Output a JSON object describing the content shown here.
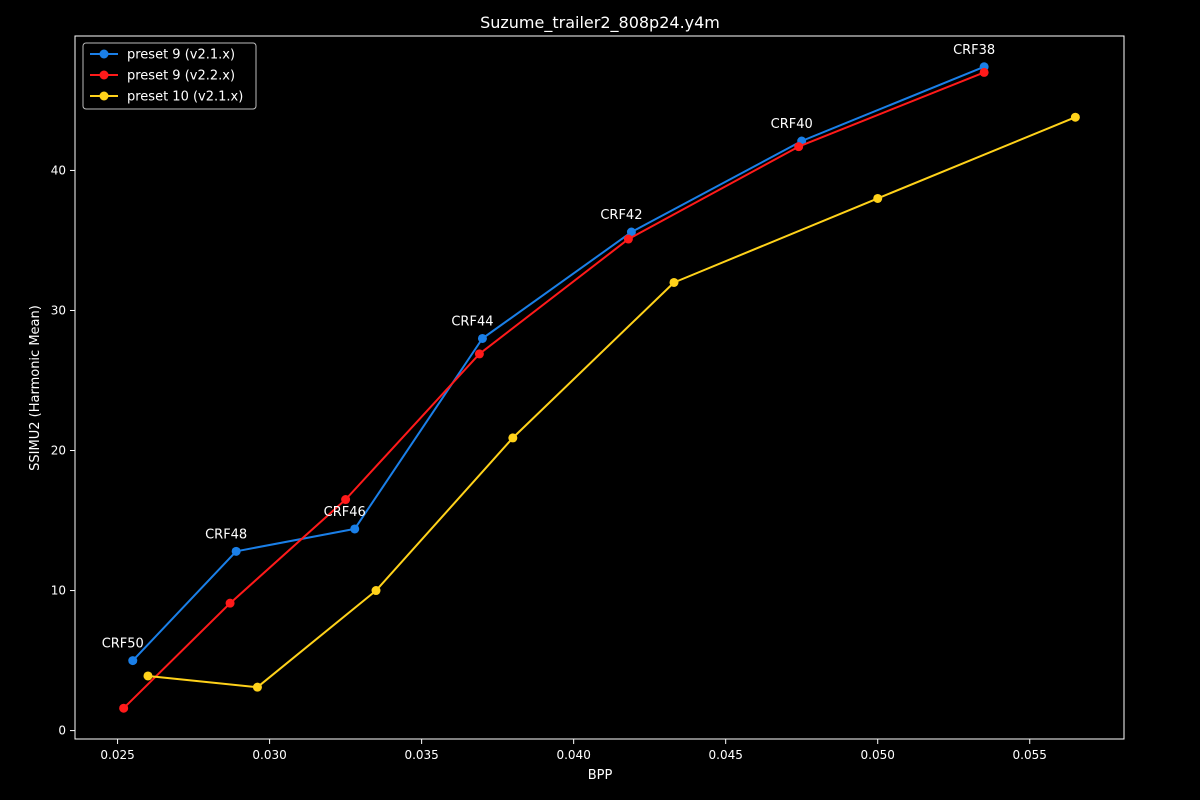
{
  "chart_data": {
    "type": "line",
    "title": "Suzume_trailer2_808p24.y4m",
    "xlabel": "BPP",
    "ylabel": "SSIMU2 (Harmonic Mean)",
    "xlim": [
      0.0236,
      0.0581
    ],
    "ylim": [
      -0.6,
      49.6
    ],
    "xticks": [
      0.025,
      0.03,
      0.035,
      0.04,
      0.045,
      0.05,
      0.055
    ],
    "xtick_labels": [
      "0.025",
      "0.030",
      "0.035",
      "0.040",
      "0.045",
      "0.050",
      "0.055"
    ],
    "yticks": [
      0,
      10,
      20,
      30,
      40
    ],
    "ytick_labels": [
      "0",
      "10",
      "20",
      "30",
      "40"
    ],
    "grid": false,
    "legend_position": "top-left",
    "background": "#000000",
    "foreground": "#ffffff",
    "series": [
      {
        "name": "preset 9 (v2.1.x)",
        "color": "#1a7fe8",
        "x": [
          0.0255,
          0.0289,
          0.0328,
          0.037,
          0.0419,
          0.0475,
          0.0535
        ],
        "y": [
          5.0,
          12.8,
          14.4,
          28.0,
          35.6,
          42.1,
          47.4
        ]
      },
      {
        "name": "preset 9 (v2.2.x)",
        "color": "#ff1a1a",
        "x": [
          0.0252,
          0.0287,
          0.0325,
          0.0369,
          0.0418,
          0.0474,
          0.0535
        ],
        "y": [
          1.6,
          9.1,
          16.5,
          26.9,
          35.1,
          41.7,
          47.0
        ]
      },
      {
        "name": "preset 10 (v2.1.x)",
        "color": "#ffd21a",
        "x": [
          0.026,
          0.0296,
          0.0335,
          0.038,
          0.0433,
          0.05,
          0.0565
        ],
        "y": [
          3.9,
          3.1,
          10.0,
          20.9,
          32.0,
          38.0,
          43.8
        ]
      }
    ],
    "annotations": [
      {
        "text": "CRF50",
        "x": 0.0255,
        "y": 5.0
      },
      {
        "text": "CRF48",
        "x": 0.0289,
        "y": 12.8
      },
      {
        "text": "CRF46",
        "x": 0.0328,
        "y": 14.4
      },
      {
        "text": "CRF44",
        "x": 0.037,
        "y": 28.0
      },
      {
        "text": "CRF42",
        "x": 0.0419,
        "y": 35.6
      },
      {
        "text": "CRF40",
        "x": 0.0475,
        "y": 42.1
      },
      {
        "text": "CRF38",
        "x": 0.0535,
        "y": 47.4
      }
    ]
  }
}
